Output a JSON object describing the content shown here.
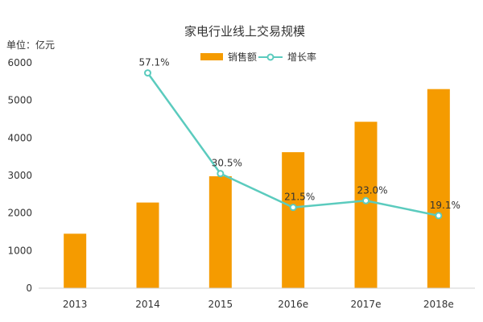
{
  "chart_data": {
    "type": "bar",
    "title": "家电行业线上交易规模",
    "unit_label": "单位：亿元",
    "categories": [
      "2013",
      "2014",
      "2015",
      "2016e",
      "2017e",
      "2018e"
    ],
    "ylim": [
      0,
      6000
    ],
    "yticks": [
      0,
      1000,
      2000,
      3000,
      4000,
      5000,
      6000
    ],
    "grid": false,
    "legend_position": "top",
    "series": [
      {
        "name": "销售额",
        "kind": "bar",
        "color": "#F59B00",
        "values": [
          1450,
          2280,
          2980,
          3620,
          4430,
          5300
        ]
      },
      {
        "name": "增长率",
        "kind": "line",
        "color": "#5BCBBE",
        "values": [
          null,
          57.1,
          30.5,
          21.5,
          23.0,
          19.1
        ],
        "labels": [
          "",
          "57.1%",
          "30.5%",
          "21.5%",
          "23.0%",
          "19.1%"
        ],
        "line_positions_in_sales_units": [
          null,
          5730,
          3050,
          2150,
          2330,
          1930
        ]
      }
    ]
  }
}
